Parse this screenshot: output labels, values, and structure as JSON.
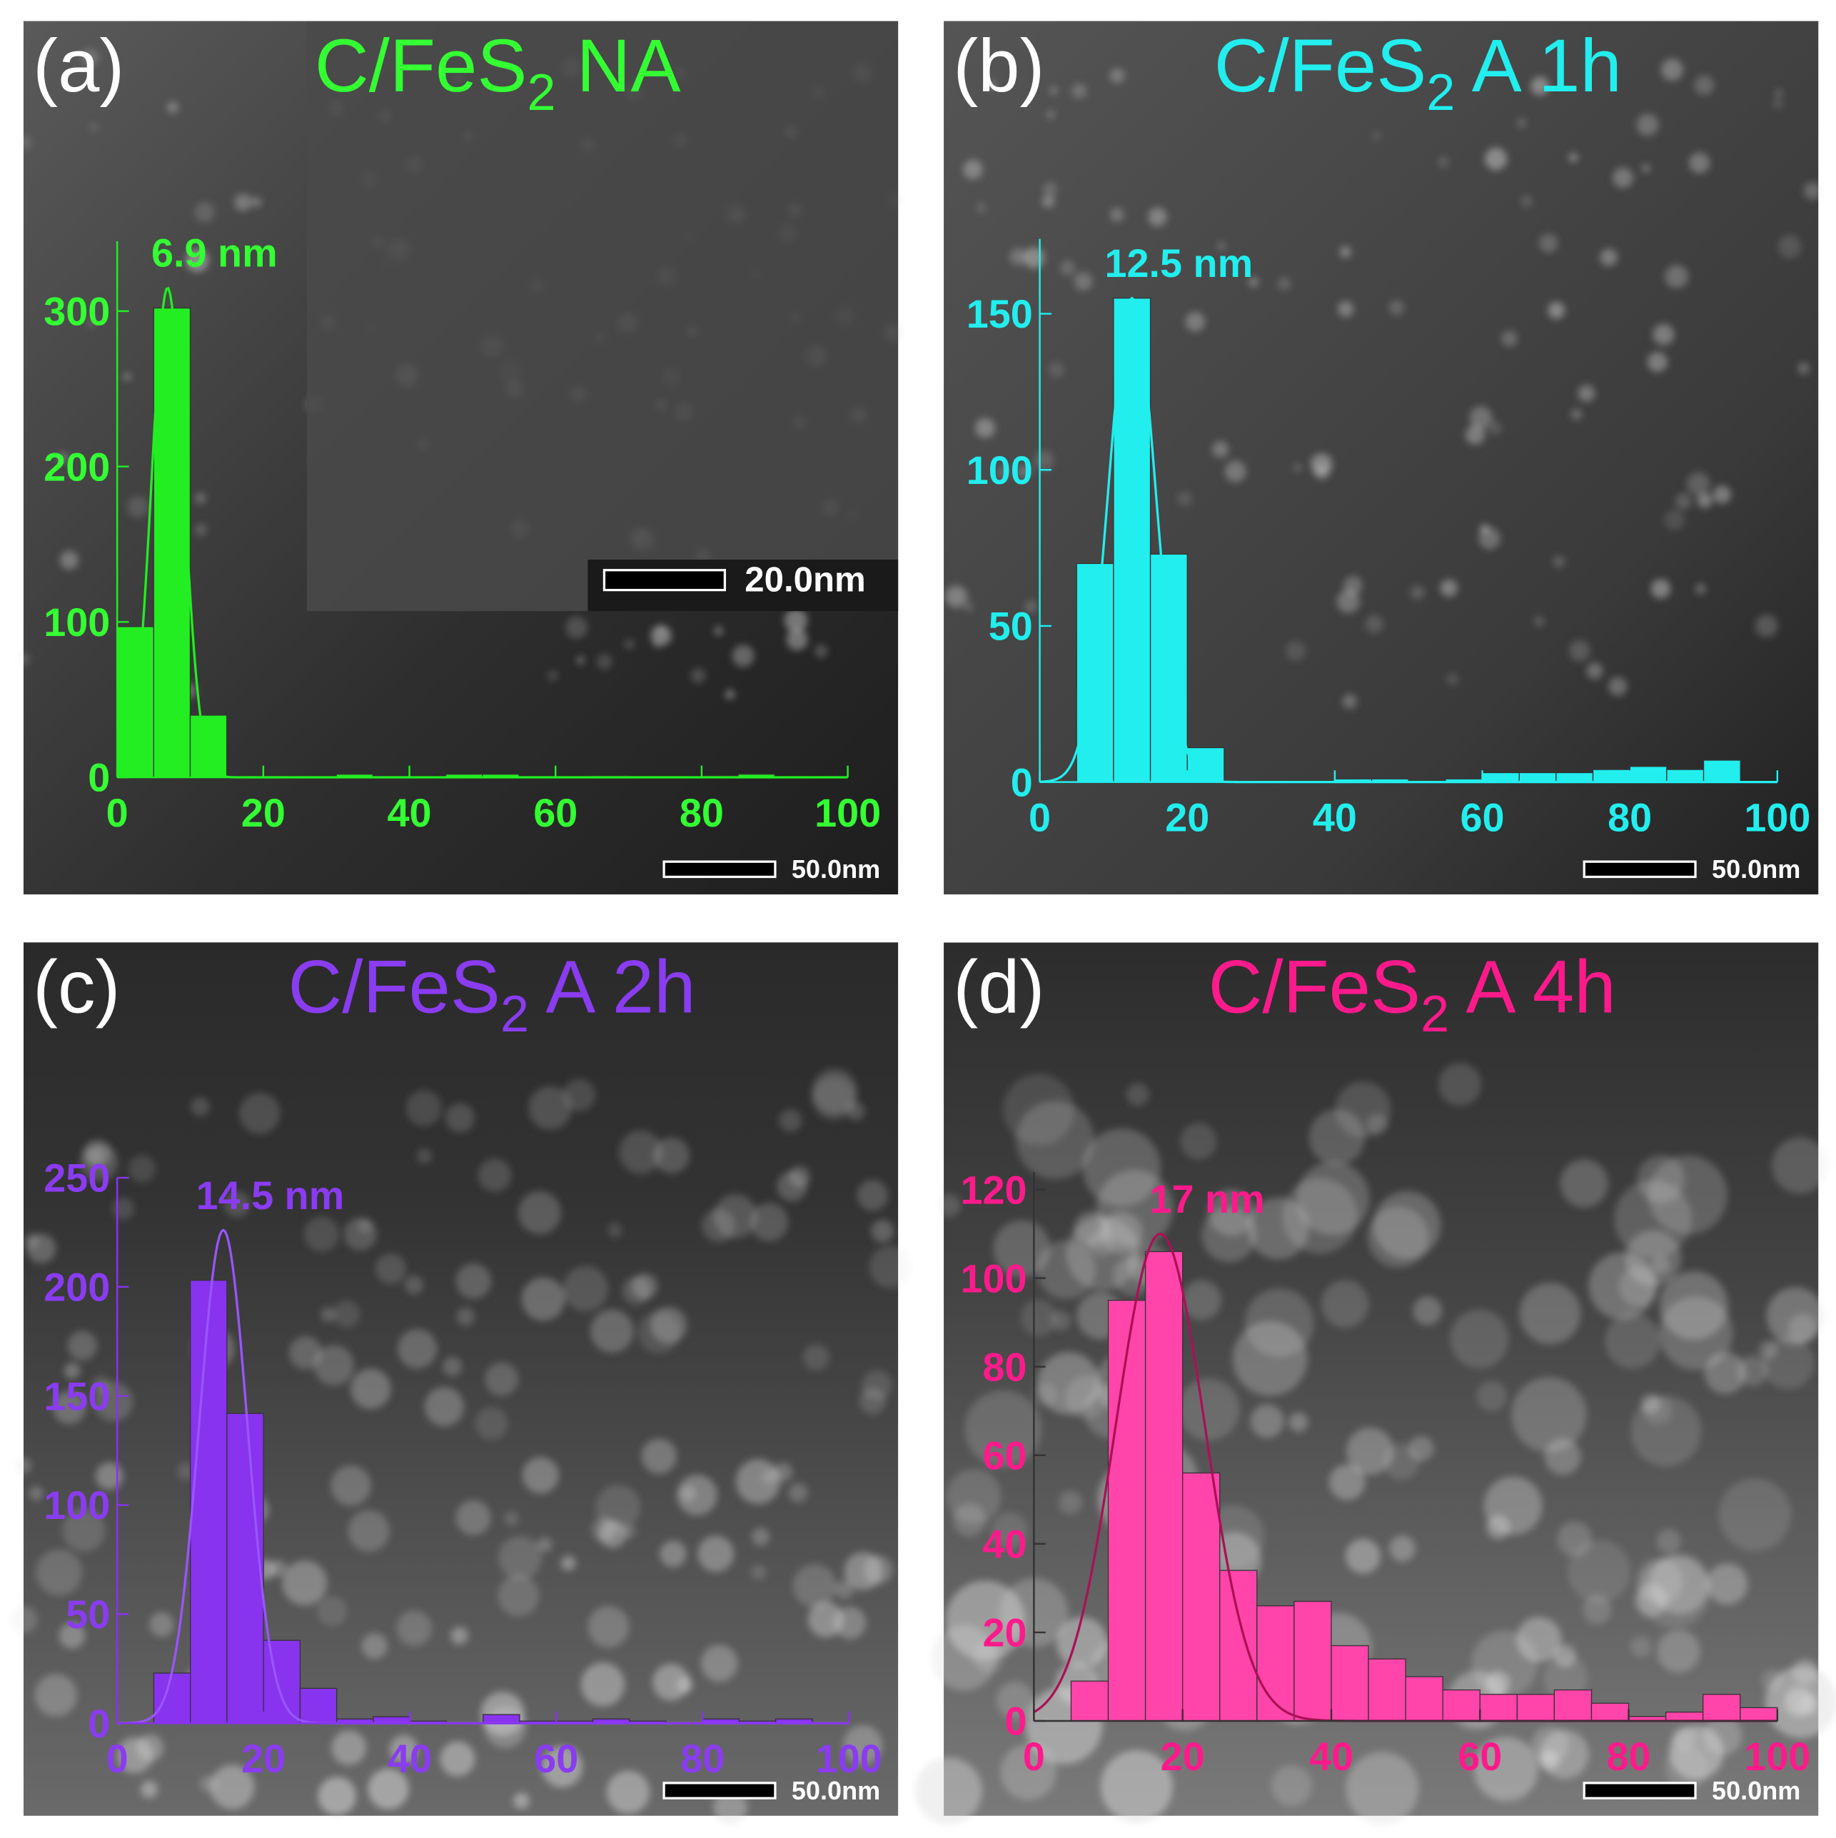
{
  "chart_data": [
    {
      "type": "histogram",
      "label": "(a)",
      "title": [
        "C/FeS",
        "2",
        " NA"
      ],
      "annotation": "6.9 nm",
      "scale_bar": "50.0nm",
      "inset_scale_bar": "20.0nm",
      "color": "#22ee22",
      "text_color": "#33ff33",
      "fit_color": "#22ee22",
      "bins": [
        0,
        5,
        10,
        15,
        20,
        25,
        30,
        35,
        40,
        45,
        50,
        55,
        60,
        65,
        70,
        75,
        80,
        85,
        90,
        95,
        100
      ],
      "counts": [
        97,
        302,
        40,
        0,
        0,
        0,
        2,
        0,
        0,
        2,
        2,
        0,
        0,
        1,
        0,
        0,
        1,
        2,
        0,
        0
      ],
      "fit": {
        "center": 6.9,
        "sigma": 2.2,
        "amplitude": 315
      },
      "xlim": [
        0,
        100
      ],
      "xticks": [
        0,
        20,
        40,
        60,
        80,
        100
      ],
      "ylim": [
        0,
        345
      ],
      "yticks": [
        0,
        100,
        200,
        300
      ]
    },
    {
      "type": "histogram",
      "label": "(b)",
      "title": [
        "C/FeS",
        "2",
        " A 1h"
      ],
      "annotation": "12.5 nm",
      "scale_bar": "50.0nm",
      "color": "#22eeee",
      "text_color": "#22eeee",
      "fit_color": "#22eeee",
      "bins": [
        0,
        5,
        10,
        15,
        20,
        25,
        30,
        35,
        40,
        45,
        50,
        55,
        60,
        65,
        70,
        75,
        80,
        85,
        90,
        95,
        100
      ],
      "counts": [
        0,
        70,
        155,
        73,
        11,
        0,
        0,
        0,
        1,
        1,
        0,
        1,
        3,
        3,
        3,
        4,
        5,
        4,
        7,
        0
      ],
      "fit": {
        "center": 12.5,
        "sigma": 3.2,
        "amplitude": 155
      },
      "xlim": [
        0,
        100
      ],
      "xticks": [
        0,
        20,
        40,
        60,
        80,
        100
      ],
      "ylim": [
        0,
        174
      ],
      "yticks": [
        0,
        50,
        100,
        150
      ]
    },
    {
      "type": "histogram",
      "label": "(c)",
      "title": [
        "C/FeS",
        "2",
        " A 2h"
      ],
      "annotation": "14.5 nm",
      "scale_bar": "50.0nm",
      "color": "#8833ee",
      "text_color": "#8a3cf0",
      "fit_color": "#9955ff",
      "bins": [
        0,
        5,
        10,
        15,
        20,
        25,
        30,
        35,
        40,
        45,
        50,
        55,
        60,
        65,
        70,
        75,
        80,
        85,
        90,
        95,
        100
      ],
      "counts": [
        0,
        23,
        203,
        142,
        38,
        16,
        2,
        3,
        1,
        0,
        4,
        1,
        1,
        2,
        1,
        0,
        2,
        1,
        2,
        0
      ],
      "fit": {
        "center": 14.5,
        "sigma": 3.3,
        "amplitude": 226
      },
      "xlim": [
        0,
        100
      ],
      "xticks": [
        0,
        20,
        40,
        60,
        80,
        100
      ],
      "ylim": [
        0,
        250
      ],
      "yticks": [
        0,
        50,
        100,
        150,
        200,
        250
      ]
    },
    {
      "type": "histogram",
      "label": "(d)",
      "title": [
        "C/FeS",
        "2",
        " A 4h"
      ],
      "annotation": "17 nm",
      "scale_bar": "50.0nm",
      "color": "#ff44aa",
      "text_color": "#ff1a8c",
      "fit_color": "#aa1155",
      "bins": [
        0,
        5,
        10,
        15,
        20,
        25,
        30,
        35,
        40,
        45,
        50,
        55,
        60,
        65,
        70,
        75,
        80,
        85,
        90,
        95,
        100
      ],
      "counts": [
        0,
        9,
        95,
        106,
        56,
        34,
        26,
        27,
        17,
        14,
        10,
        7,
        6,
        6,
        7,
        4,
        1,
        2,
        6,
        3
      ],
      "fit": {
        "center": 17,
        "sigma": 6,
        "amplitude": 110
      },
      "xlim": [
        0,
        100
      ],
      "xticks": [
        0,
        20,
        40,
        60,
        80,
        100
      ],
      "ylim": [
        0,
        124
      ],
      "yticks": [
        0,
        20,
        40,
        60,
        80,
        100,
        120
      ]
    }
  ]
}
